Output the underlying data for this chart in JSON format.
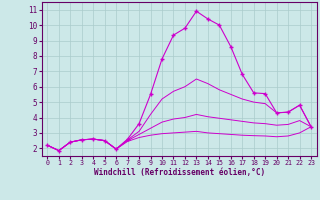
{
  "xlabel": "Windchill (Refroidissement éolien,°C)",
  "background_color": "#cce8e8",
  "grid_color": "#aacccc",
  "line_color": "#cc00cc",
  "xlim": [
    -0.5,
    23.5
  ],
  "ylim": [
    1.5,
    11.5
  ],
  "yticks": [
    2,
    3,
    4,
    5,
    6,
    7,
    8,
    9,
    10,
    11
  ],
  "xticks": [
    0,
    1,
    2,
    3,
    4,
    5,
    6,
    7,
    8,
    9,
    10,
    11,
    12,
    13,
    14,
    15,
    16,
    17,
    18,
    19,
    20,
    21,
    22,
    23
  ],
  "lines": [
    {
      "x": [
        0,
        1,
        2,
        3,
        4,
        5,
        6,
        7,
        8,
        9,
        10,
        11,
        12,
        13,
        14,
        15,
        16,
        17,
        18,
        19,
        20,
        21,
        22,
        23
      ],
      "y": [
        2.2,
        1.85,
        2.4,
        2.55,
        2.6,
        2.5,
        1.95,
        2.6,
        3.6,
        5.5,
        7.8,
        9.35,
        9.8,
        10.9,
        10.4,
        10.0,
        8.6,
        6.8,
        5.6,
        5.55,
        4.3,
        4.35,
        4.8,
        3.4
      ],
      "marker": true
    },
    {
      "x": [
        0,
        1,
        2,
        3,
        4,
        5,
        6,
        7,
        8,
        9,
        10,
        11,
        12,
        13,
        14,
        15,
        16,
        17,
        18,
        19,
        20,
        21,
        22,
        23
      ],
      "y": [
        2.2,
        1.85,
        2.4,
        2.55,
        2.6,
        2.5,
        1.95,
        2.55,
        3.1,
        4.2,
        5.2,
        5.7,
        6.0,
        6.5,
        6.2,
        5.8,
        5.5,
        5.2,
        5.0,
        4.9,
        4.3,
        4.35,
        4.8,
        3.4
      ],
      "marker": false
    },
    {
      "x": [
        0,
        1,
        2,
        3,
        4,
        5,
        6,
        7,
        8,
        9,
        10,
        11,
        12,
        13,
        14,
        15,
        16,
        17,
        18,
        19,
        20,
        21,
        22,
        23
      ],
      "y": [
        2.2,
        1.85,
        2.4,
        2.55,
        2.6,
        2.5,
        1.95,
        2.5,
        2.9,
        3.3,
        3.7,
        3.9,
        4.0,
        4.2,
        4.05,
        3.95,
        3.85,
        3.75,
        3.65,
        3.6,
        3.5,
        3.55,
        3.8,
        3.4
      ],
      "marker": false
    },
    {
      "x": [
        0,
        1,
        2,
        3,
        4,
        5,
        6,
        7,
        8,
        9,
        10,
        11,
        12,
        13,
        14,
        15,
        16,
        17,
        18,
        19,
        20,
        21,
        22,
        23
      ],
      "y": [
        2.2,
        1.85,
        2.4,
        2.55,
        2.6,
        2.5,
        1.95,
        2.45,
        2.7,
        2.85,
        2.95,
        3.0,
        3.05,
        3.1,
        3.0,
        2.95,
        2.9,
        2.85,
        2.82,
        2.8,
        2.75,
        2.8,
        3.0,
        3.4
      ],
      "marker": false
    }
  ]
}
